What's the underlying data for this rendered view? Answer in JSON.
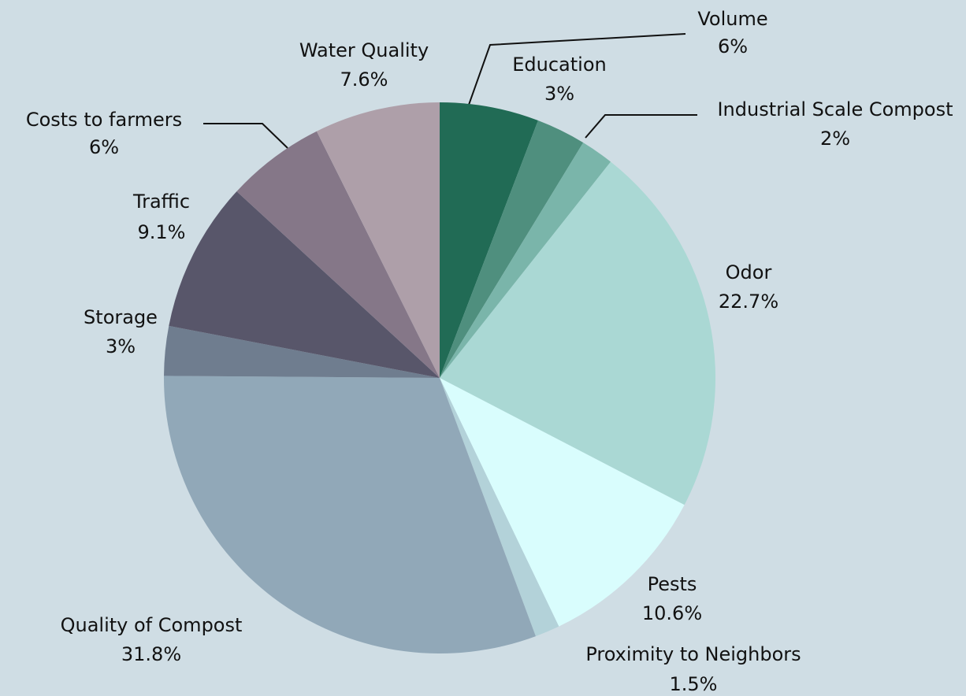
{
  "chart_data": {
    "type": "pie",
    "categories": [
      "Volume",
      "Education",
      "Industrial Scale Compost",
      "Odor",
      "Pests",
      "Proximity to Neighbors",
      "Quality of Compost",
      "Storage",
      "Traffic",
      "Costs to farmers",
      "Water Quality"
    ],
    "values": [
      6,
      3,
      2,
      22.7,
      10.6,
      1.5,
      31.8,
      3,
      9.1,
      6,
      7.6
    ],
    "value_labels": [
      "6%",
      "3%",
      "2%",
      "22.7%",
      "10.6%",
      "1.5%",
      "31.8%",
      "3%",
      "9.1%",
      "6%",
      "7.6%"
    ],
    "colors": [
      "#216b55",
      "#4f8f7e",
      "#7ab5aa",
      "#aad8d4",
      "#d9fdfd",
      "#b3d2d9",
      "#91a8b8",
      "#6f7d8f",
      "#58566a",
      "#857788",
      "#ae9fa9"
    ]
  }
}
